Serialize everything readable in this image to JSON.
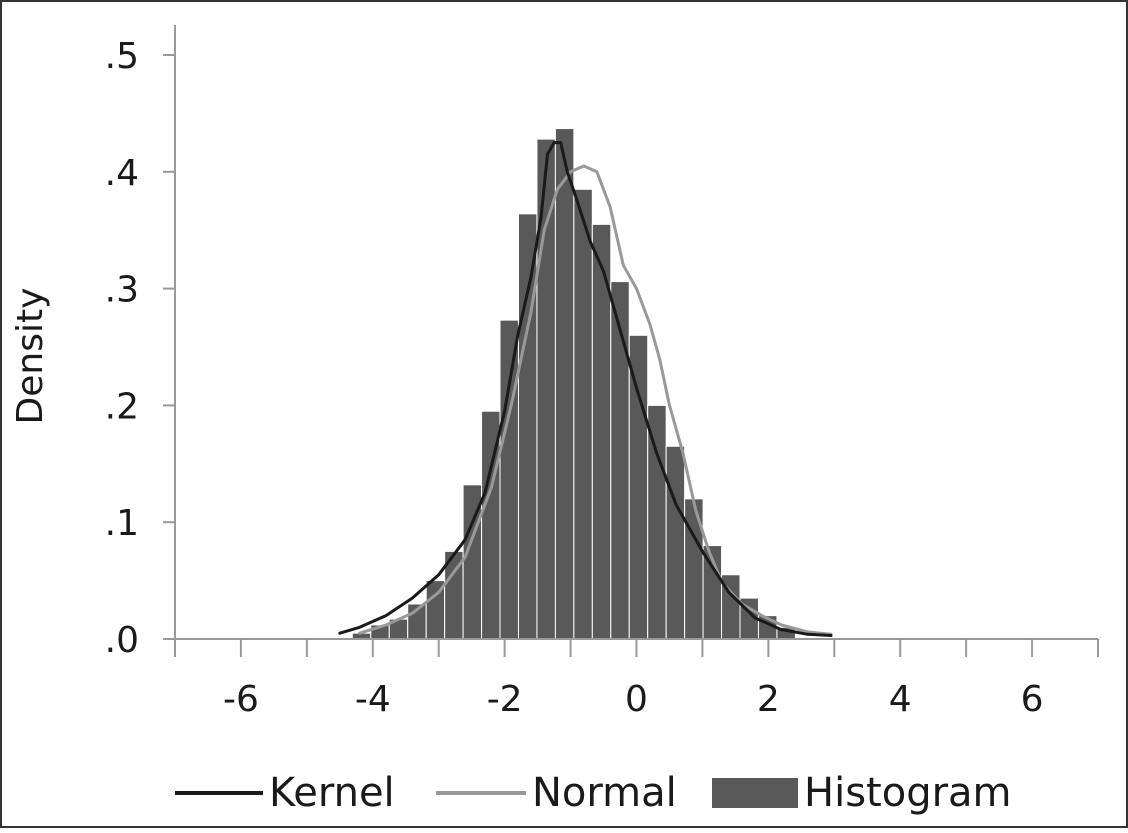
{
  "chart_data": {
    "type": "bar",
    "title": "",
    "xlabel": "",
    "ylabel": "Density",
    "xlim": [
      -7,
      7
    ],
    "ylim": [
      0,
      0.5
    ],
    "grid": false,
    "legend_position": "bottom",
    "x_ticks": [
      -6,
      -4,
      -2,
      0,
      2,
      4,
      6
    ],
    "y_ticks": [
      0,
      0.1,
      0.2,
      0.3,
      0.4,
      0.5
    ],
    "y_tick_labels": [
      ".0",
      ".1",
      ".2",
      ".3",
      ".4",
      ".5"
    ],
    "histogram": {
      "name": "Histogram",
      "color": "#595959",
      "bin_width": 0.28,
      "bin_starts": [
        -4.31,
        -4.03,
        -3.75,
        -3.47,
        -3.19,
        -2.91,
        -2.63,
        -2.35,
        -2.07,
        -1.79,
        -1.51,
        -1.23,
        -0.95,
        -0.67,
        -0.39,
        -0.11,
        0.17,
        0.45,
        0.73,
        1.01,
        1.29,
        1.57,
        1.85,
        2.13
      ],
      "values": [
        0.005,
        0.012,
        0.017,
        0.03,
        0.05,
        0.075,
        0.132,
        0.195,
        0.273,
        0.364,
        0.428,
        0.437,
        0.385,
        0.355,
        0.306,
        0.26,
        0.2,
        0.165,
        0.12,
        0.08,
        0.055,
        0.035,
        0.02,
        0.01
      ]
    },
    "series": [
      {
        "name": "Kernel",
        "type": "line",
        "color": "#1a1a1a",
        "x": [
          -4.5,
          -4.2,
          -3.8,
          -3.4,
          -3.0,
          -2.6,
          -2.3,
          -2.0,
          -1.8,
          -1.6,
          -1.45,
          -1.35,
          -1.25,
          -1.15,
          -1.05,
          -0.9,
          -0.7,
          -0.5,
          -0.3,
          0.0,
          0.3,
          0.6,
          1.0,
          1.4,
          1.8,
          2.2,
          2.6,
          2.95
        ],
        "y": [
          0.005,
          0.01,
          0.02,
          0.035,
          0.055,
          0.085,
          0.125,
          0.195,
          0.26,
          0.31,
          0.36,
          0.415,
          0.425,
          0.425,
          0.4,
          0.375,
          0.34,
          0.315,
          0.275,
          0.215,
          0.16,
          0.115,
          0.075,
          0.04,
          0.018,
          0.008,
          0.004,
          0.003
        ]
      },
      {
        "name": "Normal",
        "type": "line",
        "color": "#999999",
        "x": [
          -4.2,
          -3.8,
          -3.4,
          -3.0,
          -2.6,
          -2.2,
          -1.9,
          -1.6,
          -1.4,
          -1.2,
          -1.0,
          -0.8,
          -0.6,
          -0.4,
          -0.2,
          0.0,
          0.2,
          0.35,
          0.5,
          0.7,
          0.9,
          1.1,
          1.3,
          1.6,
          1.9,
          2.2,
          2.6,
          2.95
        ],
        "y": [
          0.005,
          0.012,
          0.022,
          0.04,
          0.07,
          0.13,
          0.2,
          0.28,
          0.35,
          0.385,
          0.4,
          0.405,
          0.4,
          0.37,
          0.32,
          0.3,
          0.27,
          0.24,
          0.2,
          0.16,
          0.11,
          0.075,
          0.048,
          0.03,
          0.02,
          0.012,
          0.006,
          0.004
        ]
      }
    ]
  }
}
